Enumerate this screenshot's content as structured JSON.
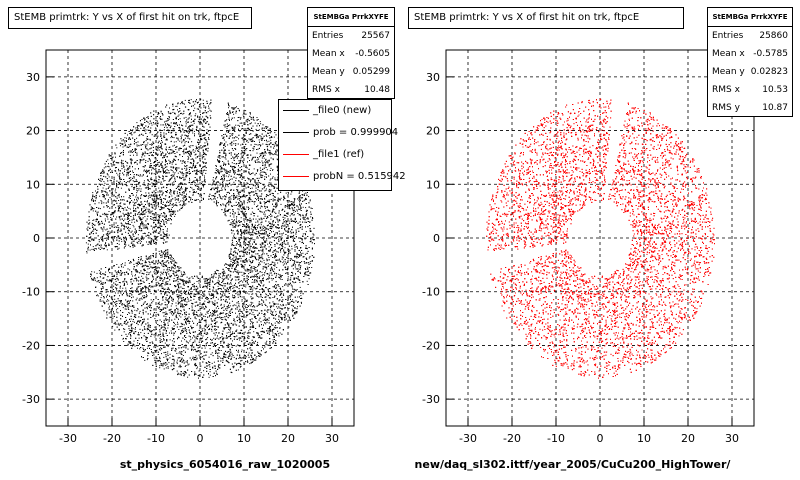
{
  "status_bar": {
    "text": ""
  },
  "chart_data": [
    {
      "type": "scatter",
      "title": "StEMB primtrk: Y vs X of first hit on trk, ftpcE",
      "xlabel": "st_physics_6054016_raw_1020005",
      "ylabel": "",
      "xlim": [
        -35,
        35
      ],
      "ylim": [
        -35,
        35
      ],
      "xticks": [
        -30,
        -20,
        -10,
        0,
        10,
        20,
        30
      ],
      "yticks": [
        -30,
        -20,
        -10,
        0,
        10,
        20,
        30
      ],
      "grid": true,
      "color": "#000000",
      "distribution": {
        "inner_radius": 7,
        "outer_radius": 23,
        "gaps_deg": [
          80,
          190
        ]
      },
      "stats": {
        "title": "StEMBGa PrrkXYFE",
        "entries": [
          {
            "label": "Entries",
            "value": "25567"
          },
          {
            "label": "Mean x",
            "value": "-0.5605"
          },
          {
            "label": "Mean y",
            "value": "0.05299"
          },
          {
            "label": "RMS x",
            "value": "10.48"
          }
        ]
      },
      "legend": [
        {
          "label": "_file0 (new)",
          "color": "#000000"
        },
        {
          "label": "prob = 0.999904",
          "color": "#000000"
        },
        {
          "label": "_file1 (ref)",
          "color": "#ff0000"
        },
        {
          "label": "probN = 0.515942",
          "color": "#ff0000"
        }
      ]
    },
    {
      "type": "scatter",
      "title": "StEMB primtrk: Y vs X of first hit on trk, ftpcE",
      "xlabel": "new/daq_sl302.ittf/year_2005/CuCu200_HighTower/",
      "ylabel": "",
      "xlim": [
        -35,
        35
      ],
      "ylim": [
        -35,
        35
      ],
      "xticks": [
        -30,
        -20,
        -10,
        0,
        10,
        20,
        30
      ],
      "yticks": [
        -30,
        -20,
        -10,
        0,
        10,
        20,
        30
      ],
      "grid": true,
      "color": "#ff0000",
      "distribution": {
        "inner_radius": 7,
        "outer_radius": 23,
        "gaps_deg": [
          80,
          190
        ]
      },
      "stats": {
        "title": "StEMBGa PrrkXYFE",
        "entries": [
          {
            "label": "Entries",
            "value": "25860"
          },
          {
            "label": "Mean x",
            "value": "-0.5785"
          },
          {
            "label": "Mean y",
            "value": "0.02823"
          },
          {
            "label": "RMS x",
            "value": "10.53"
          },
          {
            "label": "RMS y",
            "value": "10.87"
          }
        ]
      }
    }
  ]
}
